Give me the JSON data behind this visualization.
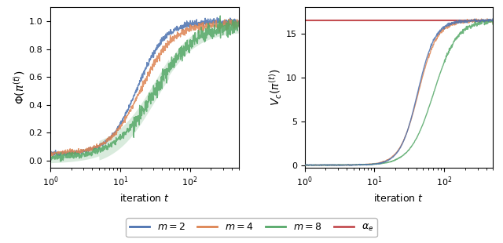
{
  "left_ylabel": "$\\Phi(\\pi^{(t)})$",
  "right_ylabel": "$V_c(\\pi^{(t)})$",
  "xlabel": "iteration $t$",
  "alpha_e": 16.5,
  "colors": {
    "m2": "#4C72B0",
    "m4": "#DD8452",
    "m8": "#55A868",
    "alpha_e": "#C44E52"
  },
  "left_ylim": [
    -0.05,
    1.1
  ],
  "right_ylim": [
    -0.3,
    18.0
  ],
  "right_yticks": [
    0,
    5,
    10,
    15
  ],
  "left_yticks": [
    0.0,
    0.2,
    0.4,
    0.6,
    0.8,
    1.0
  ]
}
